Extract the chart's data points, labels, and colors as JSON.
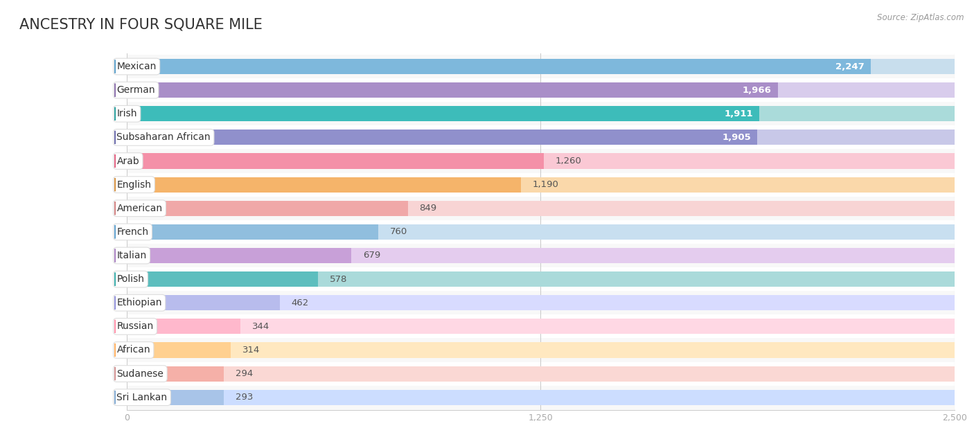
{
  "title": "ANCESTRY IN FOUR SQUARE MILE",
  "source": "Source: ZipAtlas.com",
  "categories": [
    "Mexican",
    "German",
    "Irish",
    "Subsaharan African",
    "Arab",
    "English",
    "American",
    "French",
    "Italian",
    "Polish",
    "Ethiopian",
    "Russian",
    "African",
    "Sudanese",
    "Sri Lankan"
  ],
  "values": [
    2247,
    1966,
    1911,
    1905,
    1260,
    1190,
    849,
    760,
    679,
    578,
    462,
    344,
    314,
    294,
    293
  ],
  "bar_colors": [
    "#7EB8DC",
    "#A98EC8",
    "#3DBCBA",
    "#9090CC",
    "#F490A8",
    "#F5B46A",
    "#F0A8A8",
    "#90BEDE",
    "#C8A0D8",
    "#5DBEBE",
    "#B8BCED",
    "#FFB8CC",
    "#FFD090",
    "#F5B0A8",
    "#A8C4E8"
  ],
  "bg_bar_colors": [
    "#C8DEED",
    "#D8CCEC",
    "#AADBDA",
    "#C8C8E8",
    "#FAC8D4",
    "#FAD8AA",
    "#F8D4D4",
    "#C8DFF0",
    "#E4CCEE",
    "#AADADA",
    "#D8DBFF",
    "#FFD8E4",
    "#FFE8C0",
    "#FAD8D4",
    "#CCDDFF"
  ],
  "dot_colors": [
    "#5A9EC8",
    "#8A6EAA",
    "#2A9E9C",
    "#6A6AAA",
    "#E06080",
    "#D49040",
    "#D08080",
    "#60A0CC",
    "#A880C0",
    "#3AACAA",
    "#9090D8",
    "#FF90A8",
    "#FFB060",
    "#D09090",
    "#80A8D0"
  ],
  "xlim": [
    0,
    2500
  ],
  "xticks": [
    0,
    1250,
    2500
  ],
  "background_color": "#ffffff",
  "row_colors": [
    "#f8f8f8",
    "#ffffff"
  ],
  "title_fontsize": 15,
  "label_fontsize": 10,
  "value_fontsize": 9.5,
  "bar_height": 0.65
}
